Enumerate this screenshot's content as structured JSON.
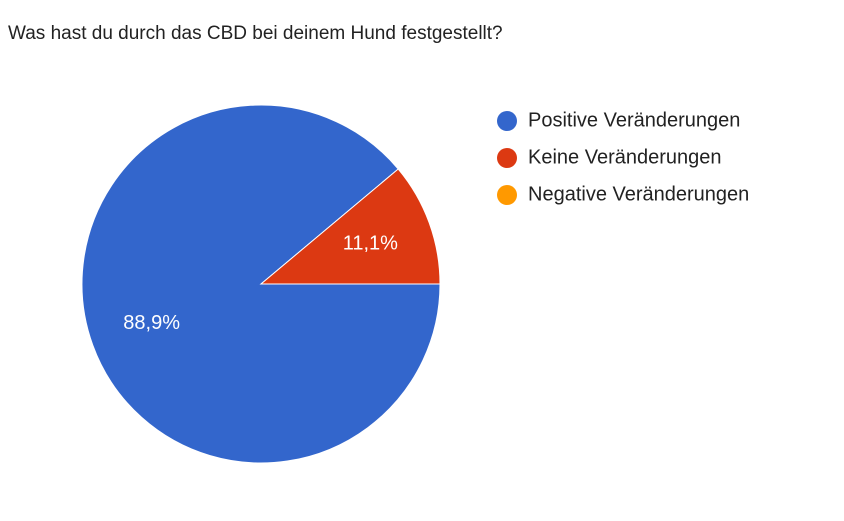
{
  "chart_data": {
    "type": "pie",
    "title": "Was hast du durch das CBD bei deinem Hund festgestellt?",
    "categories": [
      "Positive Veränderungen",
      "Keine Veränderungen",
      "Negative Veränderungen"
    ],
    "values": [
      88.9,
      11.1,
      0
    ],
    "value_labels": [
      "88,9%",
      "11,1%",
      null
    ],
    "colors": [
      "#3366cc",
      "#dc3912",
      "#ff9900"
    ],
    "legend": "right"
  }
}
